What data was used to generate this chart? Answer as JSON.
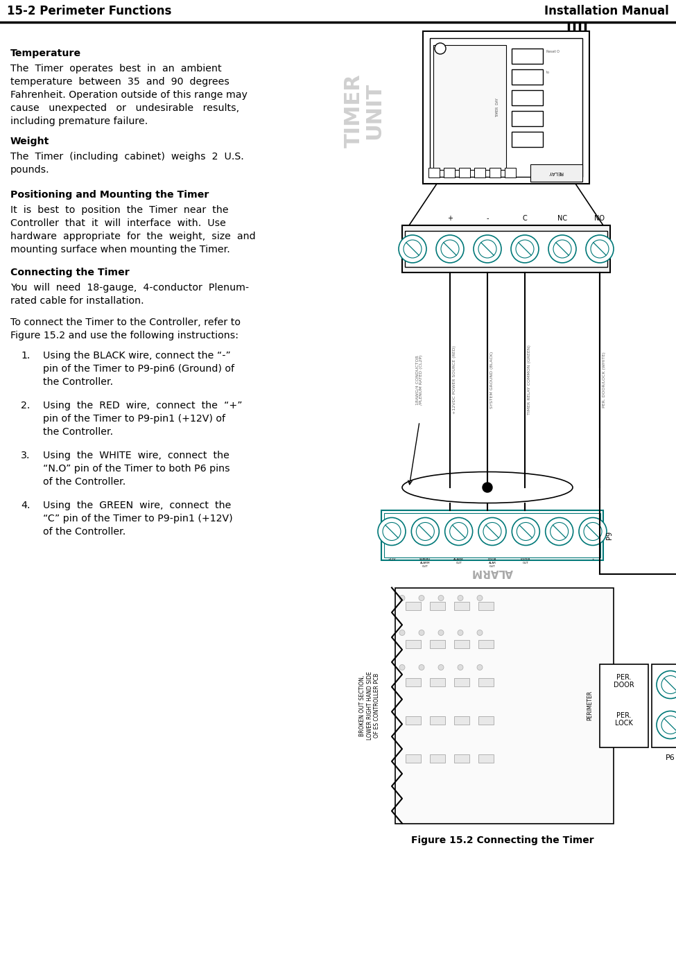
{
  "header_left": "15-2 Perimeter Functions",
  "header_right": "Installation Manual",
  "header_fontsize": 12,
  "bg_color": "#ffffff",
  "text_color": "#000000",
  "body_fontsize": 10.2,
  "teal_color": "#007878",
  "outline_color": "#000000",
  "timer_label_color": "#cccccc",
  "sections": [
    {
      "title": "Temperature",
      "body": "The  Timer  operates  best  in  an  ambient\ntemperature  between  35  and  90  degrees\nFahrenheit. Operation outside of this range may\ncause   unexpected   or   undesirable   results,\nincluding premature failure."
    },
    {
      "title": "Weight",
      "body": "The  Timer  (including  cabinet)  weighs  2  U.S.\npounds."
    },
    {
      "title": "Positioning and Mounting the Timer",
      "body": "It  is  best  to  position  the  Timer  near  the\nController  that  it  will  interface  with.  Use\nhardware  appropriate  for  the  weight,  size  and\nmounting surface when mounting the Timer."
    },
    {
      "title": "Connecting the Timer",
      "body1": "You  will  need  18-gauge,  4-conductor  Plenum-\nrated cable for installation.",
      "body2": "To connect the Timer to the Controller, refer to\nFigure 15.2 and use the following instructions:"
    }
  ],
  "list_items": [
    "Using the BLACK wire, connect the “-”\npin of the Timer to P9-pin6 (Ground) of\nthe Controller.",
    "Using  the  RED  wire,  connect  the  “+”\npin of the Timer to P9-pin1 (+12V) of\nthe Controller.",
    "Using  the  WHITE  wire,  connect  the\n“N.O” pin of the Timer to both P6 pins\nof the Controller.",
    "Using  the  GREEN  wire,  connect  the\n“C” pin of the Timer to P9-pin1 (+12V)\nof the Controller."
  ],
  "figure_caption": "Figure 15.2 Connecting the Timer"
}
